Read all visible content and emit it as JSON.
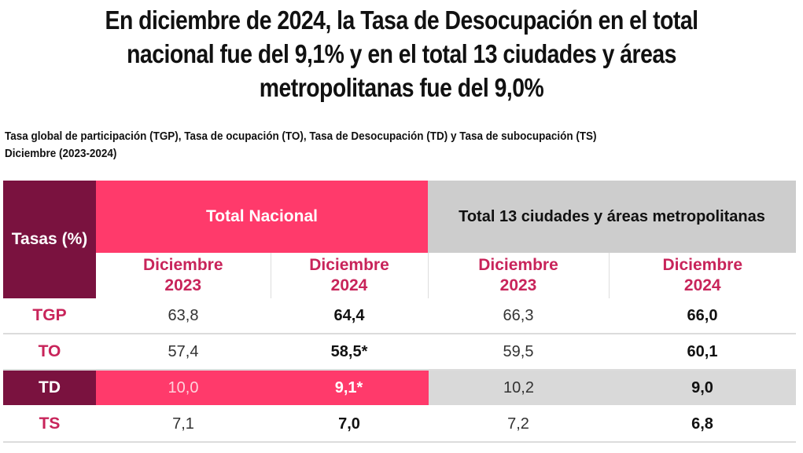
{
  "headline": {
    "line1": "En diciembre de 2024, la Tasa de Desocupación en el total",
    "line2": "nacional fue del 9,1% y en el total 13 ciudades y áreas",
    "line3": "metropolitanas fue del 9,0%"
  },
  "subtitle": {
    "line1": "Tasa global de participación (TGP), Tasa de ocupación (TO), Tasa de Desocupación (TD) y Tasa de subocupación (TS)",
    "line2": "Diciembre (2023-2024)"
  },
  "colors": {
    "dark_accent": "#7a123f",
    "pink_accent": "#ff3a6b",
    "label_text": "#c8245a",
    "gray_header": "#cdcdcd"
  },
  "chart_data": {
    "type": "table",
    "title": "En diciembre de 2024, la Tasa de Desocupación en el total nacional fue del 9,1% y en el total 13 ciudades y áreas metropolitanas fue del 9,0%",
    "subtitle": "Tasa global de participación (TGP), Tasa de ocupación (TO), Tasa de Desocupación (TD) y Tasa de subocupación (TS) Diciembre (2023-2024)",
    "row_header_label": "Tasas (%)",
    "groups": [
      {
        "name": "Total Nacional",
        "columns": [
          {
            "line1": "Diciembre",
            "line2": "2023"
          },
          {
            "line1": "Diciembre",
            "line2": "2024"
          }
        ]
      },
      {
        "name": "Total 13 ciudades y áreas metropolitanas",
        "columns": [
          {
            "line1": "Diciembre",
            "line2": "2023"
          },
          {
            "line1": "Diciembre",
            "line2": "2024"
          }
        ]
      }
    ],
    "rows": [
      {
        "label": "TGP",
        "values": [
          "63,8",
          "64,4",
          "66,3",
          "66,0"
        ],
        "highlight": false
      },
      {
        "label": "TO",
        "values": [
          "57,4",
          "58,5*",
          "59,5",
          "60,1"
        ],
        "highlight": false
      },
      {
        "label": "TD",
        "values": [
          "10,0",
          "9,1*",
          "10,2",
          "9,0"
        ],
        "highlight": true
      },
      {
        "label": "TS",
        "values": [
          "7,1",
          "7,0",
          "7,2",
          "6,8"
        ],
        "highlight": false
      }
    ]
  }
}
